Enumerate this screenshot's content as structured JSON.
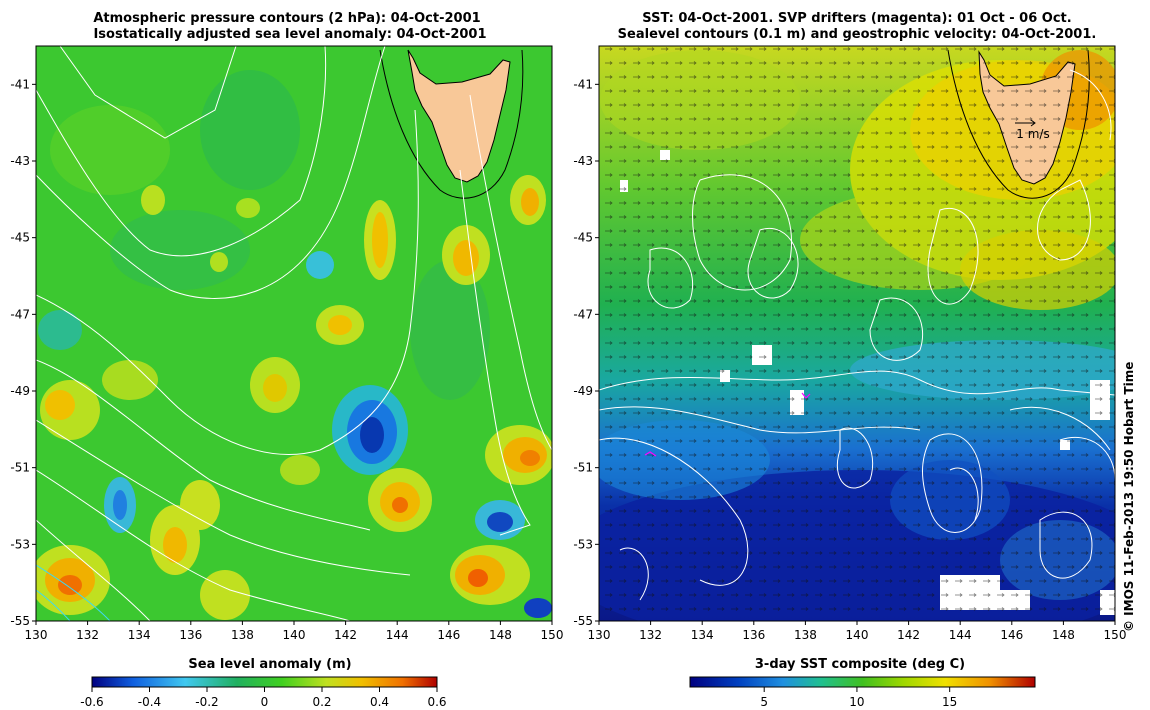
{
  "left_panel": {
    "title_line1": "Atmospheric pressure contours (2 hPa): 04-Oct-2001",
    "title_line2": "Isostatically adjusted sea level anomaly: 04-Oct-2001",
    "colorbar_label": "Sea level anomaly (m)",
    "colorbar_ticks": [
      "-0.6",
      "-0.4",
      "-0.2",
      "0",
      "0.2",
      "0.4",
      "0.6"
    ]
  },
  "right_panel": {
    "title_line1": "SST: 04-Oct-2001. SVP drifters (magenta): 01 Oct - 06 Oct.",
    "title_line2": "Sealevel contours (0.1 m) and geostrophic velocity: 04-Oct-2001.",
    "colorbar_label": "3-day SST composite (deg C)",
    "colorbar_ticks": [
      "5",
      "10",
      "15"
    ],
    "scale_arrow_label": "1 m/s"
  },
  "axes": {
    "lon_ticks": [
      "130",
      "132",
      "134",
      "136",
      "138",
      "140",
      "142",
      "144",
      "146",
      "148",
      "150"
    ],
    "lat_ticks": [
      "-41",
      "-43",
      "-45",
      "-47",
      "-49",
      "-51",
      "-53",
      "-55"
    ],
    "lon_range": [
      130,
      150
    ],
    "lat_range": [
      -55,
      -40
    ]
  },
  "credit": "© IMOS 11-Feb-2013 19:50 Hobart Time",
  "colors": {
    "land": "#f8c898",
    "sla_stops": [
      "#000080",
      "#1060e0",
      "#40c8f0",
      "#20b060",
      "#40d020",
      "#c0e020",
      "#f0c000",
      "#f07000",
      "#b00000"
    ],
    "sst_stops": [
      "#000080",
      "#0040c0",
      "#2090e0",
      "#20c090",
      "#40c020",
      "#a0d800",
      "#f0e000",
      "#f09000",
      "#b00000"
    ]
  }
}
